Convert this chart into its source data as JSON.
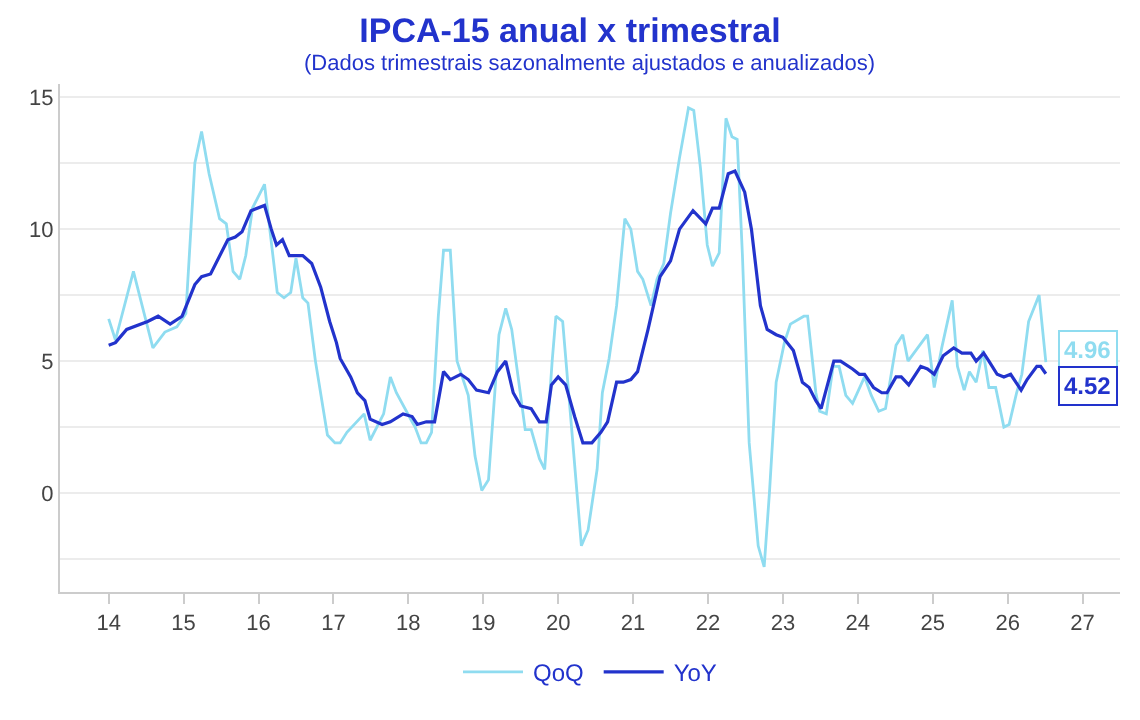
{
  "chart_data": {
    "type": "line",
    "title": "IPCA-15 anual x trimestral",
    "subtitle": "(Dados trimestrais sazonalmente ajustados e anualizados)",
    "xlim": [
      13.35,
      27.5
    ],
    "xticks": [
      14,
      15,
      16,
      17,
      18,
      19,
      20,
      21,
      22,
      23,
      24,
      25,
      26,
      27
    ],
    "ylim": [
      -3.75,
      15.5
    ],
    "yticks": [
      {
        "value": -2.5,
        "label": null
      },
      0,
      {
        "value": 2.5,
        "label": null
      },
      5,
      {
        "value": 7.5,
        "label": null
      },
      10,
      {
        "value": 12.5,
        "label": null
      },
      15
    ],
    "grid": "y",
    "legend": "bottom",
    "marker": "none",
    "line_style": "solid",
    "series": [
      {
        "name": "QoQ",
        "color": "#8fdcf0",
        "x": [
          14.0,
          14.09,
          14.33,
          14.59,
          14.75,
          14.91,
          15.03,
          15.15,
          15.24,
          15.34,
          15.48,
          15.57,
          15.66,
          15.75,
          15.83,
          15.92,
          16.08,
          16.25,
          16.34,
          16.43,
          16.5,
          16.59,
          16.66,
          16.76,
          16.92,
          17.02,
          17.09,
          17.18,
          17.41,
          17.49,
          17.67,
          17.76,
          17.84,
          18.05,
          18.09,
          18.17,
          18.24,
          18.31,
          18.4,
          18.47,
          18.56,
          18.65,
          18.8,
          18.89,
          18.98,
          19.07,
          19.21,
          19.3,
          19.38,
          19.56,
          19.64,
          19.75,
          19.82,
          19.92,
          19.97,
          20.06,
          20.19,
          20.31,
          20.4,
          20.52,
          20.59,
          20.68,
          20.78,
          20.89,
          20.97,
          21.06,
          21.13,
          21.24,
          21.32,
          21.41,
          21.5,
          21.62,
          21.74,
          21.81,
          21.9,
          21.99,
          22.06,
          22.15,
          22.24,
          22.32,
          22.39,
          22.46,
          22.55,
          22.67,
          22.75,
          22.82,
          22.91,
          23.02,
          23.1,
          23.28,
          23.33,
          23.44,
          23.49,
          23.58,
          23.67,
          23.75,
          23.84,
          23.93,
          24.09,
          24.18,
          24.28,
          24.37,
          24.51,
          24.6,
          24.67,
          24.93,
          25.02,
          25.12,
          25.26,
          25.33,
          25.42,
          25.49,
          25.58,
          25.67,
          25.75,
          25.84,
          25.95,
          26.02,
          26.12,
          26.19,
          26.28,
          26.42,
          26.51
        ],
        "values": [
          6.6,
          5.8,
          8.4,
          5.5,
          6.1,
          6.3,
          6.8,
          12.5,
          13.7,
          12.1,
          10.4,
          10.2,
          8.4,
          8.1,
          9.0,
          10.8,
          11.7,
          7.6,
          7.4,
          7.6,
          8.9,
          7.4,
          7.2,
          5.0,
          2.2,
          1.9,
          1.9,
          2.3,
          3.0,
          2.0,
          3.0,
          4.4,
          3.8,
          2.7,
          2.5,
          1.9,
          1.9,
          2.3,
          6.7,
          9.2,
          9.2,
          5.0,
          3.7,
          1.4,
          0.1,
          0.5,
          6.0,
          7.0,
          6.2,
          2.4,
          2.4,
          1.3,
          0.9,
          5.0,
          6.7,
          6.5,
          2.1,
          -2.0,
          -1.4,
          0.9,
          3.8,
          5.1,
          7.1,
          10.4,
          10.0,
          8.4,
          8.1,
          7.1,
          8.1,
          8.7,
          10.6,
          12.7,
          14.6,
          14.5,
          12.3,
          9.4,
          8.6,
          9.1,
          14.2,
          13.5,
          13.4,
          9.0,
          1.9,
          -2.0,
          -2.8,
          0.0,
          4.2,
          5.7,
          6.4,
          6.7,
          6.7,
          3.8,
          3.1,
          3.0,
          4.8,
          4.8,
          3.7,
          3.4,
          4.4,
          3.7,
          3.1,
          3.2,
          5.6,
          6.0,
          5.0,
          6.0,
          4.0,
          5.5,
          7.3,
          4.8,
          3.9,
          4.6,
          4.2,
          5.4,
          4.0,
          4.0,
          2.5,
          2.6,
          3.8,
          4.5,
          6.5,
          7.5,
          4.96
        ]
      },
      {
        "name": "YoY",
        "color": "#2233cc",
        "x": [
          14.0,
          14.09,
          14.24,
          14.52,
          14.66,
          14.82,
          14.98,
          15.15,
          15.24,
          15.36,
          15.59,
          15.69,
          15.78,
          15.9,
          16.08,
          16.17,
          16.24,
          16.32,
          16.41,
          16.59,
          16.71,
          16.83,
          16.95,
          17.04,
          17.09,
          17.23,
          17.32,
          17.42,
          17.49,
          17.65,
          17.76,
          17.93,
          18.05,
          18.12,
          18.24,
          18.35,
          18.47,
          18.56,
          18.7,
          18.8,
          18.91,
          19.07,
          19.19,
          19.3,
          19.4,
          19.5,
          19.64,
          19.75,
          19.84,
          19.91,
          20.0,
          20.1,
          20.22,
          20.33,
          20.45,
          20.57,
          20.66,
          20.78,
          20.87,
          20.97,
          21.06,
          21.2,
          21.36,
          21.5,
          21.62,
          21.8,
          21.97,
          22.06,
          22.15,
          22.27,
          22.36,
          22.49,
          22.58,
          22.7,
          22.79,
          22.91,
          23.0,
          23.14,
          23.26,
          23.35,
          23.44,
          23.51,
          23.68,
          23.77,
          23.93,
          24.02,
          24.09,
          24.21,
          24.32,
          24.39,
          24.51,
          24.58,
          24.68,
          24.84,
          24.93,
          25.02,
          25.14,
          25.28,
          25.39,
          25.51,
          25.58,
          25.68,
          25.75,
          25.86,
          25.95,
          26.04,
          26.18,
          26.26,
          26.39,
          26.44,
          26.51
        ],
        "values": [
          5.6,
          5.7,
          6.2,
          6.5,
          6.7,
          6.4,
          6.7,
          7.9,
          8.2,
          8.3,
          9.6,
          9.7,
          9.9,
          10.7,
          10.9,
          10.0,
          9.4,
          9.6,
          9.0,
          9.0,
          8.7,
          7.8,
          6.5,
          5.7,
          5.1,
          4.4,
          3.8,
          3.5,
          2.8,
          2.6,
          2.7,
          3.0,
          2.9,
          2.6,
          2.7,
          2.7,
          4.6,
          4.3,
          4.5,
          4.3,
          3.9,
          3.8,
          4.6,
          5.0,
          3.8,
          3.3,
          3.2,
          2.7,
          2.7,
          4.1,
          4.4,
          4.1,
          2.9,
          1.9,
          1.9,
          2.3,
          2.7,
          4.2,
          4.2,
          4.3,
          4.6,
          6.2,
          8.2,
          8.8,
          10.0,
          10.7,
          10.2,
          10.8,
          10.8,
          12.1,
          12.2,
          11.4,
          10.0,
          7.1,
          6.2,
          6.0,
          5.9,
          5.4,
          4.2,
          4.0,
          3.5,
          3.2,
          5.0,
          5.0,
          4.7,
          4.5,
          4.5,
          4.0,
          3.8,
          3.8,
          4.4,
          4.4,
          4.1,
          4.8,
          4.7,
          4.5,
          5.2,
          5.5,
          5.3,
          5.3,
          5.0,
          5.3,
          5.0,
          4.5,
          4.4,
          4.5,
          3.9,
          4.3,
          4.8,
          4.8,
          4.52
        ]
      }
    ],
    "annotations": [
      {
        "text": "4.96",
        "x": 26.51,
        "y": 4.96
      },
      {
        "text": "4.52",
        "x": 26.51,
        "y": 4.52
      }
    ]
  }
}
